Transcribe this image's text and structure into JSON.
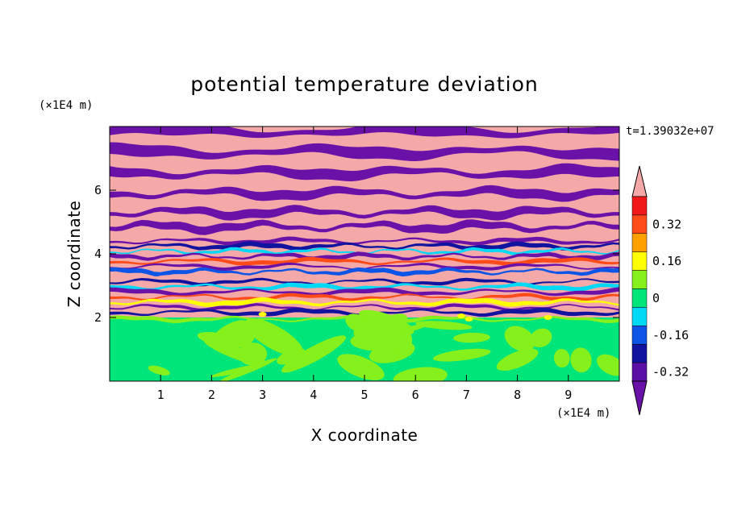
{
  "chart_data": {
    "type": "heatmap",
    "title": "potential temperature deviation",
    "xlabel": "X coordinate",
    "ylabel": "Z coordinate",
    "x_unit": "(×1E4 m)",
    "y_unit": "(×1E4 m)",
    "time_label": "t=1.39032e+07",
    "xlim": [
      0,
      10
    ],
    "ylim": [
      0,
      8
    ],
    "x_ticks": [
      "1",
      "2",
      "3",
      "4",
      "5",
      "6",
      "7",
      "8",
      "9"
    ],
    "y_ticks": [
      "2",
      "4",
      "6"
    ],
    "colorbar": {
      "labels": [
        "0.32",
        "0.16",
        "0",
        "-0.16",
        "-0.32"
      ],
      "levels": [
        -0.48,
        -0.4,
        -0.32,
        -0.24,
        -0.16,
        -0.08,
        0,
        0.08,
        0.16,
        0.24,
        0.32,
        0.4,
        0.48
      ],
      "colors_low_to_high": [
        "#5b0fa5",
        "#12139e",
        "#0c55e6",
        "#00d9f5",
        "#00e57a",
        "#86f01c",
        "#ffff00",
        "#ffa000",
        "#ff4b1a",
        "#f01818"
      ],
      "under_color": "#6a11a8",
      "over_color": "#f4a8a8"
    },
    "regions": [
      {
        "z_range": [
          0,
          2.0
        ],
        "description_colors": [
          "#00e57a",
          "#86f01c"
        ]
      },
      {
        "z_range": [
          2.0,
          4.5
        ],
        "description_colors": [
          "#6a11a8",
          "#f4a8a8",
          "#12139e",
          "#00d9f5",
          "#ff4b1a"
        ]
      },
      {
        "z_range": [
          4.5,
          8.0
        ],
        "description_colors": [
          "#6a11a8",
          "#f4a8a8"
        ]
      }
    ]
  }
}
